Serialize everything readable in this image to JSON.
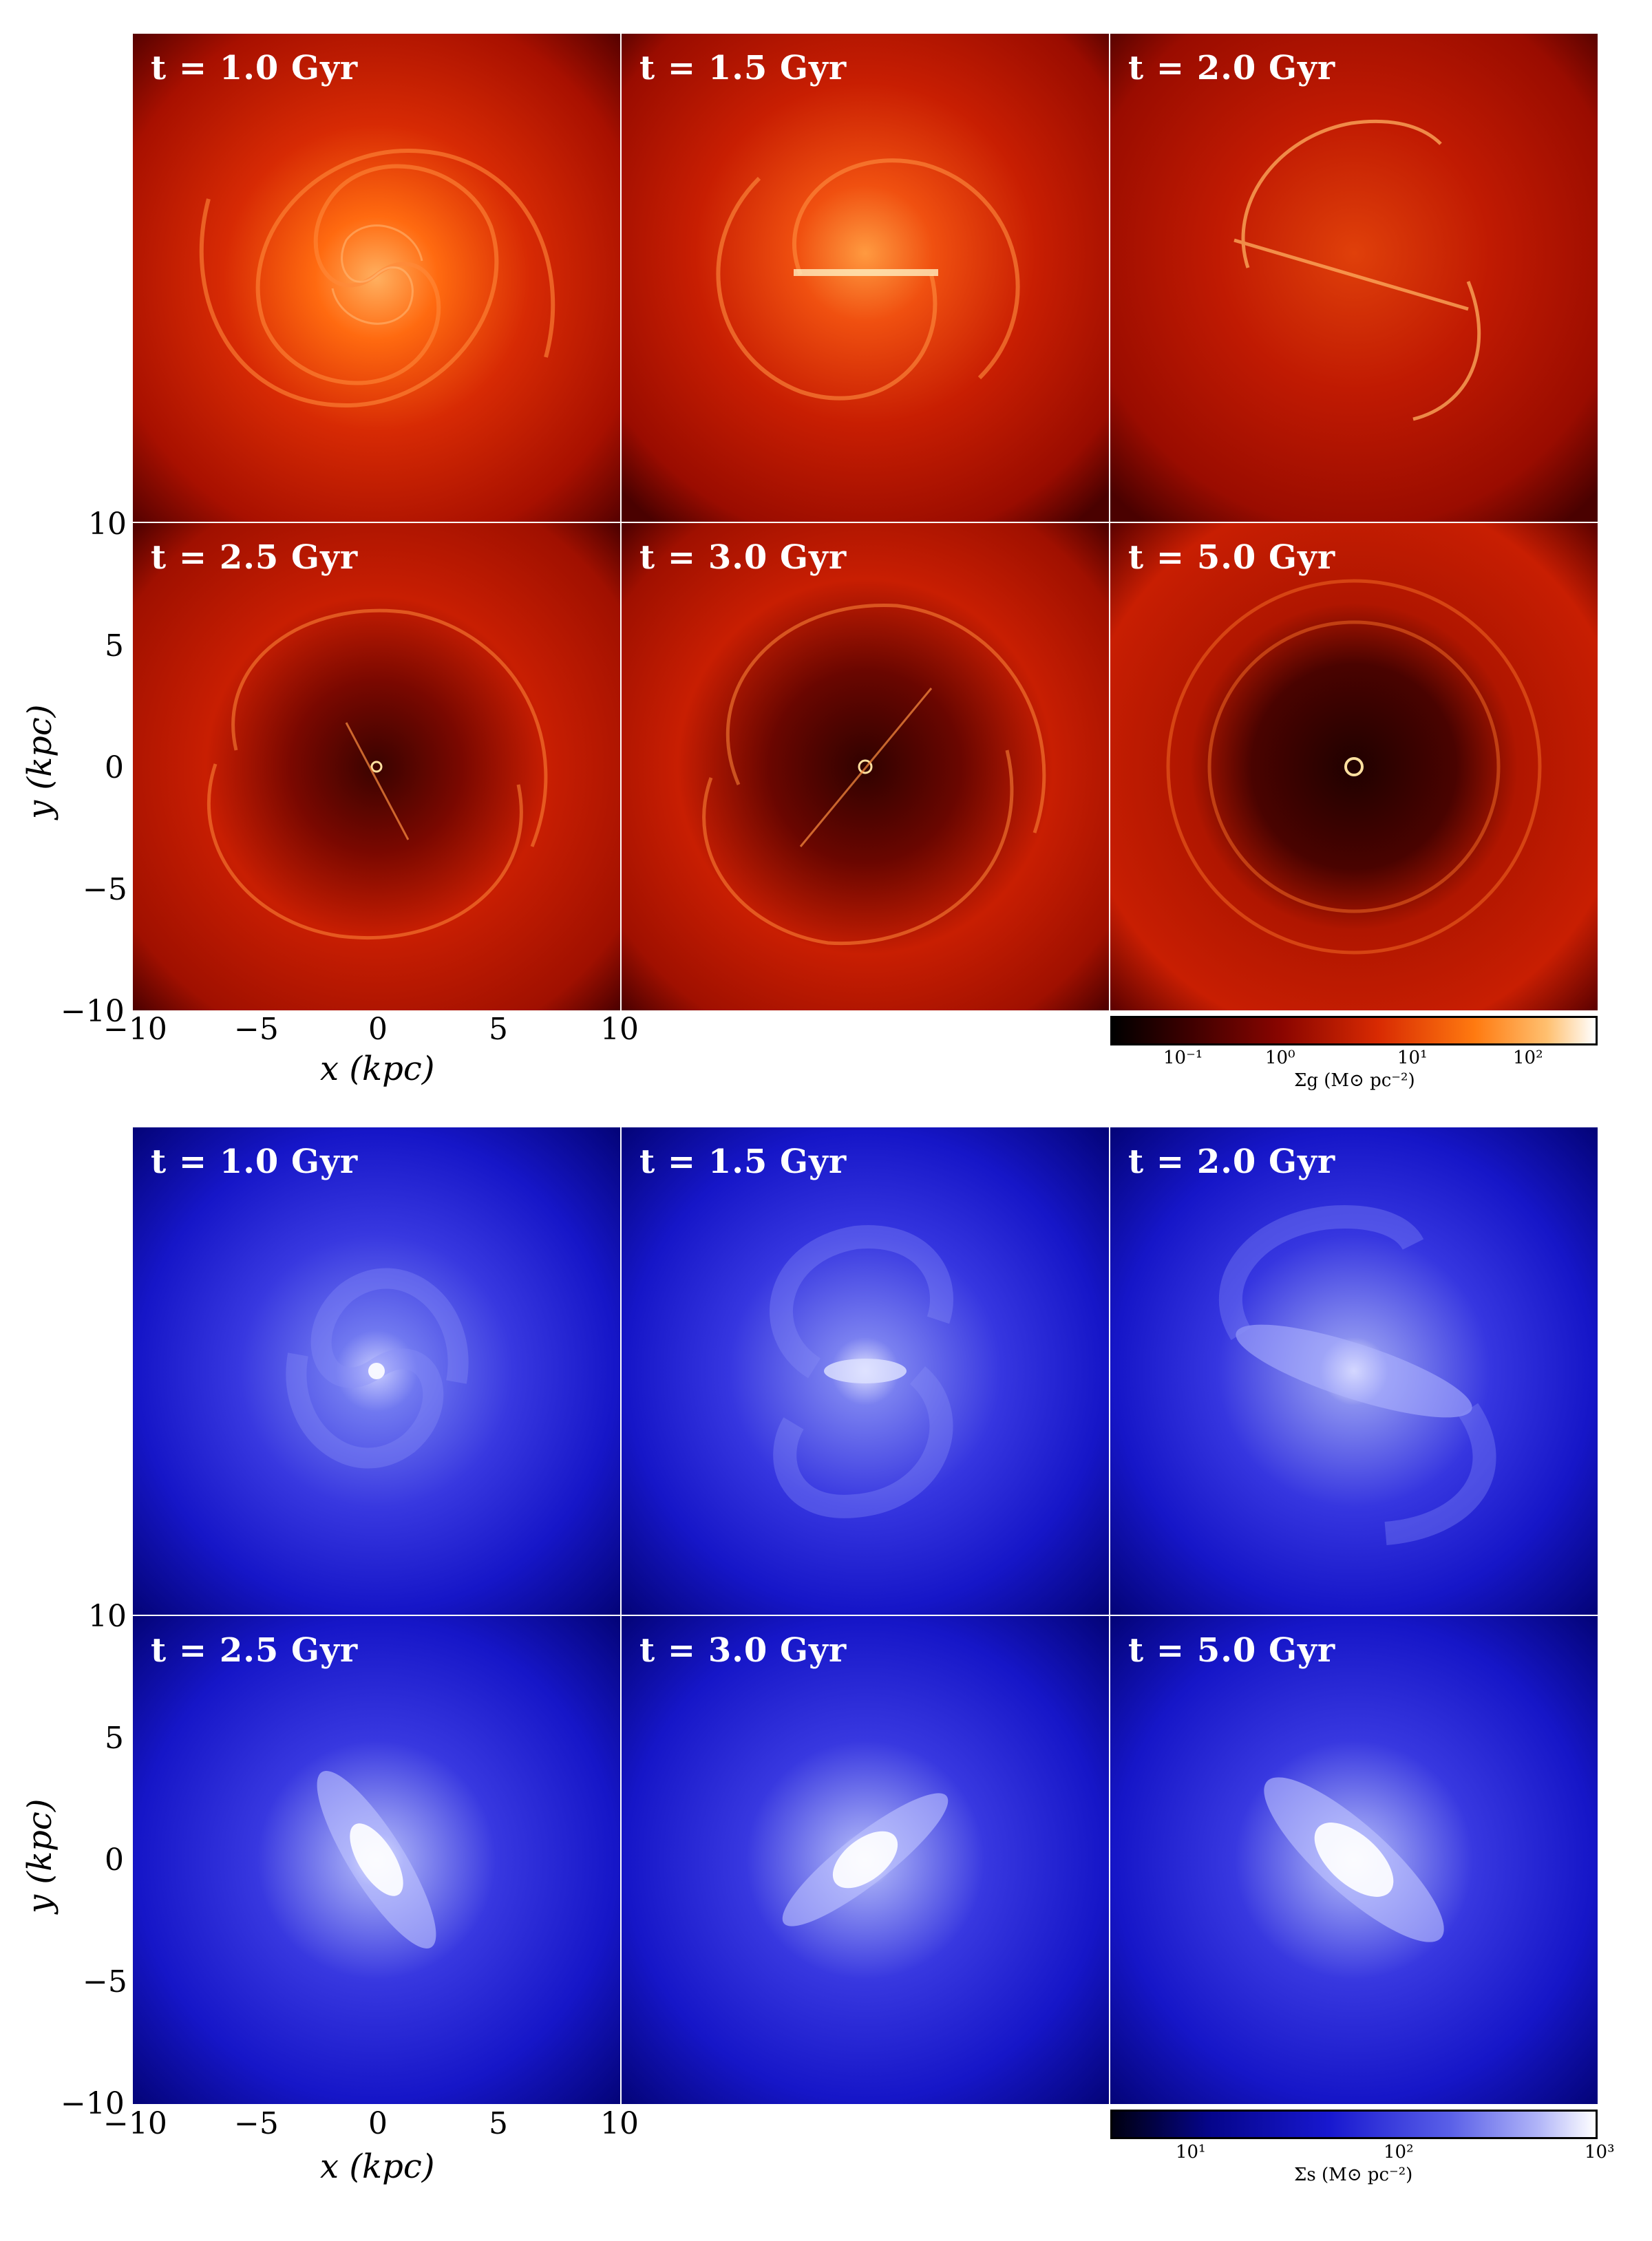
{
  "gas": {
    "labels": [
      "t = 1.0 Gyr",
      "t = 1.5 Gyr",
      "t = 2.0 Gyr",
      "t = 2.5 Gyr",
      "t = 3.0 Gyr",
      "t = 5.0 Gyr"
    ],
    "colormap": {
      "dark": "#2a0000",
      "mid": "#c81a00",
      "bright": "#ff8c1a",
      "white": "#fff6e0"
    },
    "colorbar": {
      "ticks": [
        "10⁻¹",
        "10⁰",
        "10¹",
        "10²"
      ],
      "title": "Σg (M⊙ pc⁻²)"
    }
  },
  "stars": {
    "labels": [
      "t = 1.0 Gyr",
      "t = 1.5 Gyr",
      "t = 2.0 Gyr",
      "t = 2.5 Gyr",
      "t = 3.0 Gyr",
      "t = 5.0 Gyr"
    ],
    "colormap": {
      "dark": "#000010",
      "mid": "#1414d8",
      "bright": "#7f86f0",
      "white": "#ffffff"
    },
    "colorbar": {
      "ticks": [
        "10¹",
        "10²",
        "10³"
      ],
      "title": "Σs (M⊙ pc⁻²)"
    }
  },
  "axes": {
    "y_ticks": [
      "10",
      "5",
      "0",
      "−5",
      "−10"
    ],
    "x_ticks": [
      "−10",
      "−5",
      "0",
      "5",
      "10"
    ],
    "xlabel": "x (kpc)",
    "ylabel": "y (kpc)"
  }
}
